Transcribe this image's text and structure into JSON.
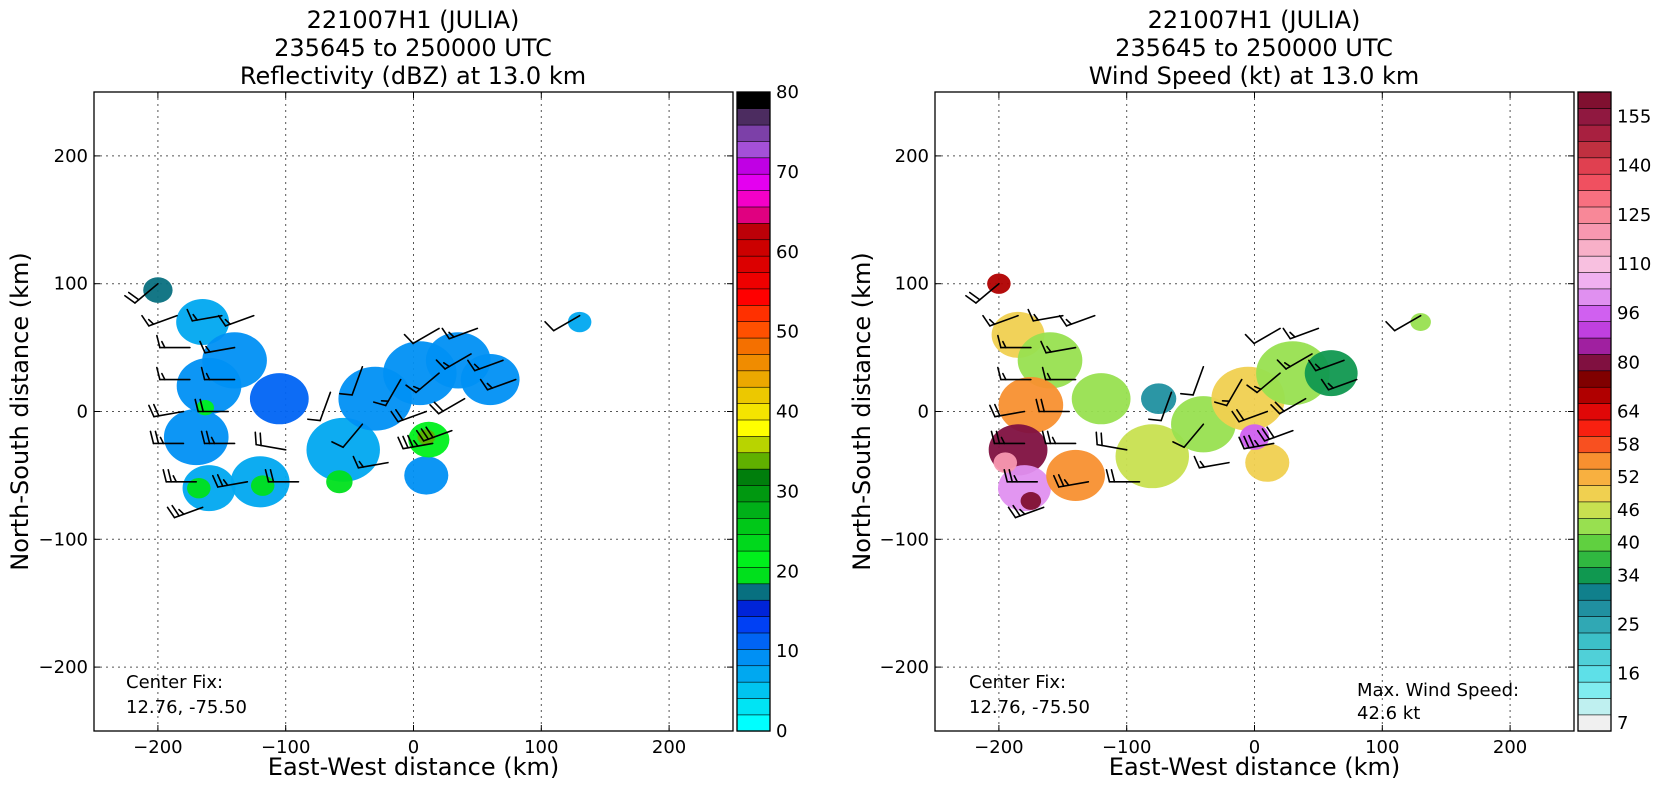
{
  "chart_data": [
    {
      "type": "heatmap",
      "title_lines": [
        "221007H1 (JULIA)",
        "235645 to 250000 UTC",
        "Reflectivity (dBZ) at 13.0 km"
      ],
      "xlabel": "East-West distance (km)",
      "ylabel": "North-South distance (km)",
      "xlim": [
        -250,
        250
      ],
      "ylim": [
        -250,
        250
      ],
      "xticks": [
        -200,
        -100,
        0,
        100,
        200
      ],
      "yticks": [
        -200,
        -100,
        0,
        100,
        200
      ],
      "xtick_labels": [
        "−200",
        "−100",
        "0",
        "100",
        "200"
      ],
      "ytick_labels": [
        "−200",
        "−100",
        "0",
        "100",
        "200"
      ],
      "grid": true,
      "annotations": [
        "Center Fix:",
        "12.76, -75.50"
      ],
      "colorbar": {
        "min": 0,
        "max": 80,
        "tick_values": [
          0,
          10,
          20,
          30,
          40,
          50,
          60,
          70,
          80
        ],
        "tick_labels": [
          "0",
          "10",
          "20",
          "30",
          "40",
          "50",
          "60",
          "70",
          "80"
        ],
        "colors": [
          "#00ffff",
          "#00e4f4",
          "#00c4f0",
          "#00a8f0",
          "#0090f4",
          "#0064f4",
          "#0040f4",
          "#0024d8",
          "#087080",
          "#00e01c",
          "#00f01c",
          "#00d81c",
          "#00c818",
          "#00b018",
          "#009810",
          "#007e0c",
          "#60b000",
          "#b8d400",
          "#ffff00",
          "#f4e400",
          "#ecc800",
          "#eca800",
          "#f08c00",
          "#f47000",
          "#ff5000",
          "#ff3000",
          "#ff0000",
          "#ee0000",
          "#dc0000",
          "#cc0000",
          "#bc0008",
          "#e00080",
          "#f400c8",
          "#e400f0",
          "#c000e4",
          "#a450d8",
          "#7c40a8",
          "#4c2c60",
          "#000000"
        ]
      },
      "echo_cells": [
        {
          "x": -200,
          "y": 95,
          "r": 10,
          "value": 18
        },
        {
          "x": -165,
          "y": 70,
          "r": 18,
          "value": 8
        },
        {
          "x": -160,
          "y": 20,
          "r": 22,
          "value": 10
        },
        {
          "x": -170,
          "y": -20,
          "r": 22,
          "value": 10
        },
        {
          "x": -160,
          "y": -60,
          "r": 18,
          "value": 8
        },
        {
          "x": -120,
          "y": -55,
          "r": 20,
          "value": 8
        },
        {
          "x": -140,
          "y": 40,
          "r": 22,
          "value": 10
        },
        {
          "x": -105,
          "y": 10,
          "r": 20,
          "value": 11
        },
        {
          "x": -55,
          "y": -30,
          "r": 25,
          "value": 8
        },
        {
          "x": -30,
          "y": 10,
          "r": 25,
          "value": 10
        },
        {
          "x": 5,
          "y": 30,
          "r": 25,
          "value": 10
        },
        {
          "x": 35,
          "y": 40,
          "r": 22,
          "value": 9
        },
        {
          "x": 60,
          "y": 25,
          "r": 20,
          "value": 9
        },
        {
          "x": 10,
          "y": -50,
          "r": 15,
          "value": 10
        },
        {
          "x": 130,
          "y": 70,
          "r": 8,
          "value": 8
        },
        {
          "x": -163,
          "y": 3,
          "r": 6,
          "value": 22
        },
        {
          "x": -168,
          "y": -60,
          "r": 8,
          "value": 20
        },
        {
          "x": -118,
          "y": -58,
          "r": 8,
          "value": 20
        },
        {
          "x": -58,
          "y": -55,
          "r": 9,
          "value": 20
        },
        {
          "x": 12,
          "y": -22,
          "r": 14,
          "value": 22
        },
        {
          "x": 10,
          "y": -20,
          "r": 6,
          "value": 34
        }
      ],
      "wind_barbs": [
        {
          "x": -200,
          "y": 100,
          "dir": 230,
          "speed": 20
        },
        {
          "x": -185,
          "y": 75,
          "dir": 250,
          "speed": 15
        },
        {
          "x": -150,
          "y": 75,
          "dir": 260,
          "speed": 15
        },
        {
          "x": -125,
          "y": 75,
          "dir": 250,
          "speed": 15
        },
        {
          "x": -175,
          "y": 50,
          "dir": 270,
          "speed": 15
        },
        {
          "x": -140,
          "y": 50,
          "dir": 260,
          "speed": 15
        },
        {
          "x": -175,
          "y": 25,
          "dir": 270,
          "speed": 15
        },
        {
          "x": -140,
          "y": 25,
          "dir": 270,
          "speed": 15
        },
        {
          "x": -180,
          "y": 0,
          "dir": 260,
          "speed": 20
        },
        {
          "x": -145,
          "y": 0,
          "dir": 270,
          "speed": 20
        },
        {
          "x": -180,
          "y": -25,
          "dir": 270,
          "speed": 25
        },
        {
          "x": -140,
          "y": -25,
          "dir": 270,
          "speed": 25
        },
        {
          "x": -100,
          "y": -30,
          "dir": 280,
          "speed": 20
        },
        {
          "x": -170,
          "y": -55,
          "dir": 270,
          "speed": 25
        },
        {
          "x": -130,
          "y": -55,
          "dir": 260,
          "speed": 25
        },
        {
          "x": -90,
          "y": -55,
          "dir": 270,
          "speed": 20
        },
        {
          "x": -165,
          "y": -75,
          "dir": 250,
          "speed": 25
        },
        {
          "x": -65,
          "y": 15,
          "dir": 200,
          "speed": 10
        },
        {
          "x": -40,
          "y": -10,
          "dir": 220,
          "speed": 10
        },
        {
          "x": -20,
          "y": -40,
          "dir": 260,
          "speed": 15
        },
        {
          "x": -40,
          "y": 35,
          "dir": 200,
          "speed": 10
        },
        {
          "x": -10,
          "y": 25,
          "dir": 210,
          "speed": 15
        },
        {
          "x": 20,
          "y": 30,
          "dir": 230,
          "speed": 15
        },
        {
          "x": 45,
          "y": 45,
          "dir": 240,
          "speed": 15
        },
        {
          "x": 70,
          "y": 40,
          "dir": 250,
          "speed": 15
        },
        {
          "x": 20,
          "y": 65,
          "dir": 240,
          "speed": 10
        },
        {
          "x": 50,
          "y": 65,
          "dir": 250,
          "speed": 15
        },
        {
          "x": 80,
          "y": 25,
          "dir": 250,
          "speed": 15
        },
        {
          "x": 10,
          "y": 0,
          "dir": 250,
          "speed": 20
        },
        {
          "x": 40,
          "y": 10,
          "dir": 240,
          "speed": 20
        },
        {
          "x": 15,
          "y": -25,
          "dir": 260,
          "speed": 35
        },
        {
          "x": 30,
          "y": -15,
          "dir": 250,
          "speed": 30
        },
        {
          "x": 130,
          "y": 75,
          "dir": 240,
          "speed": 10
        }
      ]
    },
    {
      "type": "heatmap",
      "title_lines": [
        "221007H1 (JULIA)",
        "235645 to 250000 UTC",
        "Wind Speed (kt) at 13.0 km"
      ],
      "xlabel": "East-West distance (km)",
      "ylabel": "North-South distance (km)",
      "xlim": [
        -250,
        250
      ],
      "ylim": [
        -250,
        250
      ],
      "xticks": [
        -200,
        -100,
        0,
        100,
        200
      ],
      "yticks": [
        -200,
        -100,
        0,
        100,
        200
      ],
      "xtick_labels": [
        "−200",
        "−100",
        "0",
        "100",
        "200"
      ],
      "ytick_labels": [
        "−200",
        "−100",
        "0",
        "100",
        "200"
      ],
      "grid": true,
      "annotations": [
        "Center Fix:",
        "12.76, -75.50"
      ],
      "max_wind_label": "Max. Wind Speed:",
      "max_wind_value": "42.6 kt",
      "colorbar": {
        "tick_labels": [
          "7",
          "16",
          "25",
          "34",
          "40",
          "46",
          "52",
          "58",
          "64",
          "80",
          "96",
          "110",
          "125",
          "140",
          "155"
        ],
        "tick_index": [
          0,
          3,
          6,
          9,
          11,
          13,
          15,
          17,
          19,
          22,
          25,
          28,
          31,
          34,
          37
        ],
        "colors": [
          "#f0f0f0",
          "#bff0f0",
          "#80ecf0",
          "#5ee0e8",
          "#50d0d8",
          "#3cc0c8",
          "#30a8b4",
          "#2090a0",
          "#10808c",
          "#109850",
          "#30b840",
          "#60d040",
          "#98e050",
          "#c8e050",
          "#f0d050",
          "#f8b040",
          "#f89030",
          "#f85020",
          "#f82010",
          "#e00808",
          "#b00000",
          "#800000",
          "#801040",
          "#a020a0",
          "#c040e0",
          "#d060f0",
          "#e090f0",
          "#f0b0f0",
          "#f8c0e0",
          "#f8b0c8",
          "#f898b0",
          "#f88898",
          "#f87080",
          "#f05060",
          "#e04050",
          "#c03040",
          "#a82040",
          "#901840",
          "#801030"
        ]
      },
      "speed_cells": [
        {
          "x": -200,
          "y": 100,
          "r": 8,
          "value": 20
        },
        {
          "x": -185,
          "y": 60,
          "r": 18,
          "value": 14
        },
        {
          "x": -160,
          "y": 40,
          "r": 22,
          "value": 12
        },
        {
          "x": -175,
          "y": 5,
          "r": 22,
          "value": 16
        },
        {
          "x": -185,
          "y": -30,
          "r": 20,
          "value": 22
        },
        {
          "x": -180,
          "y": -60,
          "r": 18,
          "value": 26
        },
        {
          "x": -140,
          "y": -50,
          "r": 20,
          "value": 16
        },
        {
          "x": -120,
          "y": 10,
          "r": 20,
          "value": 12
        },
        {
          "x": -80,
          "y": -35,
          "r": 25,
          "value": 13
        },
        {
          "x": -40,
          "y": -10,
          "r": 22,
          "value": 12
        },
        {
          "x": -5,
          "y": 10,
          "r": 25,
          "value": 14
        },
        {
          "x": 30,
          "y": 30,
          "r": 25,
          "value": 12
        },
        {
          "x": 60,
          "y": 30,
          "r": 18,
          "value": 9
        },
        {
          "x": 10,
          "y": -40,
          "r": 15,
          "value": 14
        },
        {
          "x": 130,
          "y": 70,
          "r": 7,
          "value": 12
        },
        {
          "x": -75,
          "y": 10,
          "r": 12,
          "value": 7
        },
        {
          "x": 0,
          "y": -20,
          "r": 10,
          "value": 25
        },
        {
          "x": -175,
          "y": -70,
          "r": 7,
          "value": 40
        },
        {
          "x": -195,
          "y": -40,
          "r": 8,
          "value": 30
        }
      ]
    }
  ]
}
